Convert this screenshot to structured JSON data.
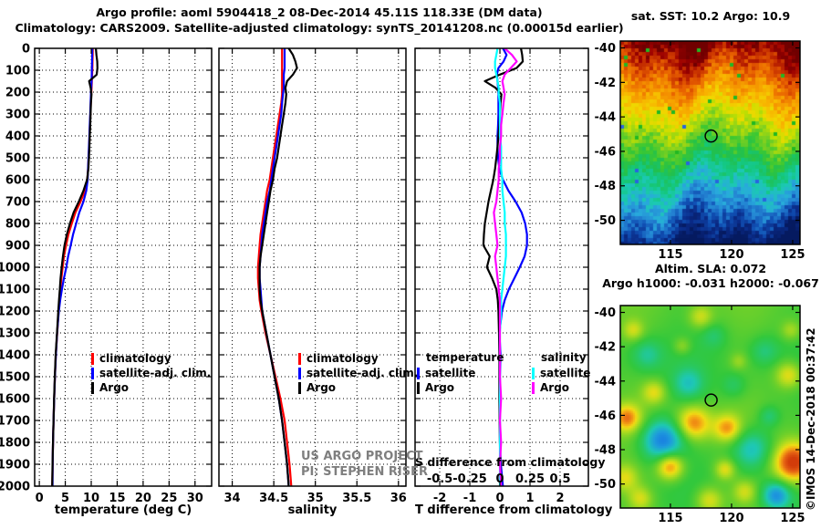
{
  "figure": {
    "title_line1": "Argo profile: aoml 5904418_2 08-Dec-2014 45.11S 118.33E (DM data)",
    "title_line2": "Climatology: CARS2009. Satellite-adjusted climatology: synTS_20141208.nc (0.00015d earlier)",
    "watermark": "©IMOS 14-Dec-2018 00:37:42",
    "annotation_line1": "US ARGO PROJECT",
    "annotation_line2": "PI: STEPHEN RISER",
    "annotation_color": "#7f7f7f",
    "depth_axis": {
      "ticks": [
        0,
        100,
        200,
        300,
        400,
        500,
        600,
        700,
        800,
        900,
        1000,
        1100,
        1200,
        1300,
        1400,
        1500,
        1600,
        1700,
        1800,
        1900,
        2000
      ]
    }
  },
  "legends": {
    "temperature_panel": {
      "items": [
        {
          "label": "climatology",
          "color": "#ff0000"
        },
        {
          "label": "satellite-adj. clim.",
          "color": "#0000ff"
        },
        {
          "label": "Argo",
          "color": "#000000"
        }
      ]
    },
    "salinity_panel": {
      "items": [
        {
          "label": "climatology",
          "color": "#ff0000"
        },
        {
          "label": "satellite-adj. clim.",
          "color": "#0000ff"
        },
        {
          "label": "Argo",
          "color": "#000000"
        }
      ]
    },
    "difference_panel": {
      "temperature_group": {
        "header": "temperature",
        "items": [
          {
            "label": "satellite",
            "color": "#0000ff"
          },
          {
            "label": "Argo",
            "color": "#000000"
          }
        ]
      },
      "salinity_group": {
        "header": "salinity",
        "items": [
          {
            "label": "satellite",
            "color": "#00ffff"
          },
          {
            "label": "Argo",
            "color": "#ff00ff"
          }
        ]
      }
    }
  },
  "chart_data": [
    {
      "id": "temperature_profile",
      "type": "line",
      "xlabel": "temperature (deg C)",
      "x_ticks": [
        0,
        5,
        10,
        15,
        20,
        25,
        30
      ],
      "xlim": [
        -0.9,
        33.2
      ],
      "ylabel": "depth",
      "ylim": [
        0,
        2000
      ],
      "grid": true,
      "depths": [
        0,
        30,
        60,
        90,
        120,
        150,
        180,
        210,
        250,
        300,
        350,
        400,
        450,
        500,
        550,
        600,
        650,
        700,
        750,
        800,
        850,
        900,
        950,
        1000,
        1050,
        1100,
        1150,
        1200,
        1300,
        1400,
        1500,
        1600,
        1700,
        1800,
        1900,
        2000
      ],
      "series": [
        {
          "name": "climatology",
          "color": "#ff0000",
          "values": [
            10.3,
            10.28,
            10.25,
            10.22,
            10.18,
            10.12,
            10.06,
            10.0,
            9.93,
            9.84,
            9.76,
            9.68,
            9.6,
            9.5,
            9.4,
            9.25,
            8.8,
            7.95,
            6.95,
            6.25,
            5.6,
            5.15,
            4.75,
            4.5,
            4.25,
            4.05,
            3.87,
            3.7,
            3.44,
            3.18,
            3.0,
            2.87,
            2.74,
            2.64,
            2.56,
            2.5
          ]
        },
        {
          "name": "satellite-adj. clim.",
          "color": "#0000ff",
          "values": [
            10.2,
            10.18,
            10.15,
            10.12,
            10.1,
            10.06,
            10.0,
            9.95,
            9.88,
            9.8,
            9.72,
            9.64,
            9.56,
            9.47,
            9.38,
            9.32,
            9.05,
            8.5,
            7.7,
            7.1,
            6.5,
            6.05,
            5.55,
            5.2,
            4.75,
            4.35,
            4.02,
            3.75,
            3.42,
            3.2,
            3.0,
            2.87,
            2.74,
            2.64,
            2.57,
            2.55
          ]
        },
        {
          "name": "Argo",
          "color": "#000000",
          "values": [
            10.9,
            11.0,
            11.15,
            11.2,
            11.05,
            9.6,
            9.9,
            10.05,
            9.95,
            9.88,
            9.8,
            9.72,
            9.65,
            9.55,
            9.45,
            9.2,
            8.5,
            7.6,
            6.6,
            5.9,
            5.3,
            4.85,
            4.55,
            4.3,
            4.1,
            3.95,
            3.8,
            3.65,
            3.4,
            3.15,
            2.98,
            2.85,
            2.73,
            2.63,
            2.55,
            2.48
          ]
        }
      ]
    },
    {
      "id": "salinity_profile",
      "type": "line",
      "xlabel": "salinity",
      "x_ticks": [
        34,
        34.5,
        35,
        35.5,
        36
      ],
      "xlim": [
        33.84,
        36.09
      ],
      "ylim": [
        0,
        2000
      ],
      "grid": true,
      "depths": [
        0,
        30,
        60,
        90,
        120,
        150,
        180,
        210,
        250,
        300,
        350,
        400,
        450,
        500,
        550,
        600,
        650,
        700,
        750,
        800,
        850,
        900,
        950,
        1000,
        1050,
        1100,
        1150,
        1200,
        1300,
        1400,
        1500,
        1600,
        1700,
        1800,
        1900,
        2000
      ],
      "series": [
        {
          "name": "climatology",
          "color": "#ff0000",
          "values": [
            34.6,
            34.6,
            34.6,
            34.6,
            34.6,
            34.6,
            34.6,
            34.6,
            34.59,
            34.57,
            34.55,
            34.53,
            34.51,
            34.49,
            34.47,
            34.45,
            34.42,
            34.4,
            34.38,
            34.36,
            34.34,
            34.33,
            34.32,
            34.31,
            34.31,
            34.32,
            34.33,
            34.35,
            34.4,
            34.46,
            34.52,
            34.58,
            34.63,
            34.66,
            34.69,
            34.71
          ]
        },
        {
          "name": "satellite-adj. clim.",
          "color": "#0000ff",
          "values": [
            34.63,
            34.63,
            34.63,
            34.63,
            34.62,
            34.62,
            34.62,
            34.61,
            34.6,
            34.59,
            34.57,
            34.55,
            34.53,
            34.51,
            34.49,
            34.47,
            34.45,
            34.42,
            34.4,
            34.38,
            34.36,
            34.35,
            34.34,
            34.33,
            34.33,
            34.34,
            34.35,
            34.36,
            34.41,
            34.46,
            34.51,
            34.56,
            34.6,
            34.63,
            34.66,
            34.68
          ]
        },
        {
          "name": "Argo",
          "color": "#000000",
          "values": [
            34.68,
            34.73,
            34.76,
            34.78,
            34.73,
            34.66,
            34.64,
            34.65,
            34.64,
            34.62,
            34.6,
            34.58,
            34.56,
            34.54,
            34.51,
            34.49,
            34.46,
            34.44,
            34.42,
            34.4,
            34.38,
            34.36,
            34.34,
            34.33,
            34.33,
            34.33,
            34.34,
            34.36,
            34.41,
            34.46,
            34.51,
            34.56,
            34.6,
            34.63,
            34.66,
            34.68
          ]
        }
      ]
    },
    {
      "id": "difference_profile",
      "type": "line",
      "xlabel": "T difference from climatology",
      "x_ticks": [
        -2,
        -1,
        0,
        1,
        2
      ],
      "xlim": [
        -2.82,
        2.94
      ],
      "ylim": [
        0,
        2000
      ],
      "grid": true,
      "s_axis": {
        "label": "S difference from climatology",
        "ticks": [
          -0.5,
          -0.25,
          0,
          0.25,
          0.5
        ],
        "scale_to_T": 4
      },
      "depths": [
        0,
        30,
        60,
        90,
        120,
        150,
        180,
        210,
        250,
        300,
        350,
        400,
        450,
        500,
        550,
        600,
        650,
        700,
        750,
        800,
        850,
        900,
        950,
        1000,
        1050,
        1100,
        1150,
        1200,
        1300,
        1400,
        1500,
        1600,
        1700,
        1800,
        1900,
        2000
      ],
      "series": [
        {
          "name": "temperature satellite",
          "axis": "T",
          "color": "#0000ff",
          "values": [
            0.1,
            0.22,
            0.12,
            -0.05,
            -0.1,
            -0.08,
            -0.06,
            -0.05,
            -0.05,
            -0.05,
            -0.06,
            -0.08,
            -0.08,
            -0.06,
            -0.02,
            0.1,
            0.28,
            0.52,
            0.72,
            0.84,
            0.9,
            0.9,
            0.82,
            0.66,
            0.48,
            0.3,
            0.16,
            0.07,
            -0.02,
            0.02,
            0.0,
            0.0,
            0.0,
            0.0,
            0.03,
            0.1
          ]
        },
        {
          "name": "temperature Argo",
          "axis": "T",
          "color": "#000000",
          "values": [
            0.7,
            0.74,
            0.76,
            0.55,
            0.0,
            -0.5,
            -0.15,
            0.05,
            0.02,
            0.0,
            -0.02,
            -0.05,
            -0.08,
            -0.12,
            -0.16,
            -0.22,
            -0.3,
            -0.38,
            -0.44,
            -0.5,
            -0.53,
            -0.55,
            -0.34,
            -0.43,
            -0.26,
            -0.12,
            -0.07,
            -0.05,
            -0.03,
            -0.02,
            -0.02,
            -0.02,
            -0.01,
            0.0,
            0.01,
            0.02
          ]
        },
        {
          "name": "salinity satellite",
          "axis": "S",
          "color": "#00ffff",
          "values": [
            -0.02,
            -0.03,
            -0.04,
            -0.04,
            -0.03,
            -0.02,
            -0.01,
            -0.01,
            0.0,
            0.0,
            0.0,
            0.0,
            0.01,
            0.01,
            0.01,
            0.02,
            0.02,
            0.03,
            0.04,
            0.04,
            0.05,
            0.05,
            0.05,
            0.04,
            0.03,
            0.02,
            0.01,
            0.01,
            0.0,
            0.0,
            0.0,
            0.0,
            0.0,
            0.0,
            0.0,
            0.0
          ]
        },
        {
          "name": "salinity Argo",
          "axis": "S",
          "color": "#ff00ff",
          "values": [
            0.04,
            0.1,
            0.14,
            0.09,
            0.04,
            0.02,
            0.03,
            0.04,
            0.03,
            0.02,
            0.01,
            0.01,
            0.0,
            0.0,
            -0.01,
            -0.01,
            -0.02,
            -0.03,
            -0.05,
            -0.04,
            -0.03,
            -0.02,
            -0.04,
            -0.03,
            -0.02,
            -0.01,
            0.0,
            0.0,
            0.0,
            0.0,
            0.0,
            0.01,
            0.0,
            0.01,
            0.0,
            0.01
          ]
        }
      ]
    },
    {
      "id": "sst_map",
      "type": "heatmap",
      "title": "sat. SST: 10.2 Argo: 10.9",
      "lon_ticks": [
        115,
        120,
        125
      ],
      "lat_ticks": [
        -40,
        -42,
        -44,
        -46,
        -48,
        -50
      ],
      "lon_range": [
        110.9,
        125.6
      ],
      "lat_range": [
        -39.6,
        -51.4
      ],
      "marker": {
        "lon": 118.33,
        "lat": -45.11
      },
      "palette": [
        [
          0,
          "#700000"
        ],
        [
          0.05,
          "#9c0000"
        ],
        [
          0.1,
          "#c83200"
        ],
        [
          0.16,
          "#e86000"
        ],
        [
          0.22,
          "#f49000"
        ],
        [
          0.28,
          "#f8b400"
        ],
        [
          0.34,
          "#f0d800"
        ],
        [
          0.4,
          "#c4e000"
        ],
        [
          0.46,
          "#80d020"
        ],
        [
          0.52,
          "#3cc832"
        ],
        [
          0.58,
          "#20c050"
        ],
        [
          0.64,
          "#14c882"
        ],
        [
          0.7,
          "#1cc8b4"
        ],
        [
          0.76,
          "#28aadc"
        ],
        [
          0.82,
          "#2382d2"
        ],
        [
          0.88,
          "#1050b4"
        ],
        [
          0.94,
          "#0a2a86"
        ],
        [
          1,
          "#051a60"
        ]
      ]
    },
    {
      "id": "sla_map",
      "type": "heatmap",
      "title_line1": "Altim. SLA: 0.072",
      "title_line2": "Argo h1000: -0.031 h2000: -0.067",
      "lon_ticks": [
        115,
        120,
        125
      ],
      "lat_ticks": [
        -40,
        -42,
        -44,
        -46,
        -48,
        -50
      ],
      "lon_range": [
        110.9,
        125.6
      ],
      "lat_range": [
        -39.6,
        -51.4
      ],
      "marker": {
        "lon": 118.33,
        "lat": -45.11
      },
      "palette": [
        [
          -1.2,
          "#1464e6"
        ],
        [
          -0.8,
          "#1e9cdc"
        ],
        [
          -0.5,
          "#1ec8b4"
        ],
        [
          -0.25,
          "#28c864"
        ],
        [
          -0.05,
          "#32c83c"
        ],
        [
          0.2,
          "#6ed02a"
        ],
        [
          0.45,
          "#b4dc1e"
        ],
        [
          0.65,
          "#f0dc14"
        ],
        [
          0.8,
          "#f5aa14"
        ],
        [
          1.0,
          "#e66414"
        ],
        [
          1.2,
          "#d23c0a"
        ]
      ],
      "blobs": [
        [
          114.3,
          -47.4,
          1.2,
          -1.1
        ],
        [
          121.6,
          -47.9,
          1.2,
          -0.7
        ],
        [
          123.6,
          -50.6,
          0.8,
          -0.9
        ],
        [
          113.0,
          -42.4,
          0.9,
          -0.45
        ],
        [
          116.4,
          -44.1,
          0.9,
          -0.5
        ],
        [
          122.6,
          -42.2,
          0.8,
          -0.35
        ],
        [
          120.1,
          -44.2,
          0.7,
          -0.3
        ],
        [
          118.5,
          -41.3,
          0.7,
          -0.3
        ],
        [
          125.0,
          -48.7,
          1.2,
          1.3
        ],
        [
          116.8,
          -46.4,
          1.0,
          0.9
        ],
        [
          114.9,
          -48.9,
          0.8,
          1.0
        ],
        [
          111.4,
          -46.1,
          0.8,
          0.8
        ],
        [
          119.6,
          -46.7,
          0.8,
          0.75
        ],
        [
          113.6,
          -44.6,
          0.7,
          0.55
        ],
        [
          124.6,
          -43.6,
          0.8,
          0.65
        ],
        [
          118.1,
          -50.9,
          0.8,
          0.6
        ],
        [
          121.0,
          -50.4,
          0.7,
          0.5
        ],
        [
          111.9,
          -41.0,
          0.6,
          0.45
        ],
        [
          117.4,
          -40.2,
          0.7,
          0.5
        ],
        [
          111.2,
          -49.6,
          0.8,
          0.55
        ],
        [
          119.4,
          -49.1,
          0.6,
          0.6
        ],
        [
          115.9,
          -41.9,
          0.5,
          0.35
        ],
        [
          123.0,
          -46.0,
          0.6,
          -0.4
        ],
        [
          124.8,
          -41.0,
          0.6,
          0.4
        ],
        [
          112.5,
          -50.8,
          0.7,
          0.5
        ],
        [
          120.5,
          -42.8,
          0.5,
          0.3
        ]
      ]
    }
  ]
}
